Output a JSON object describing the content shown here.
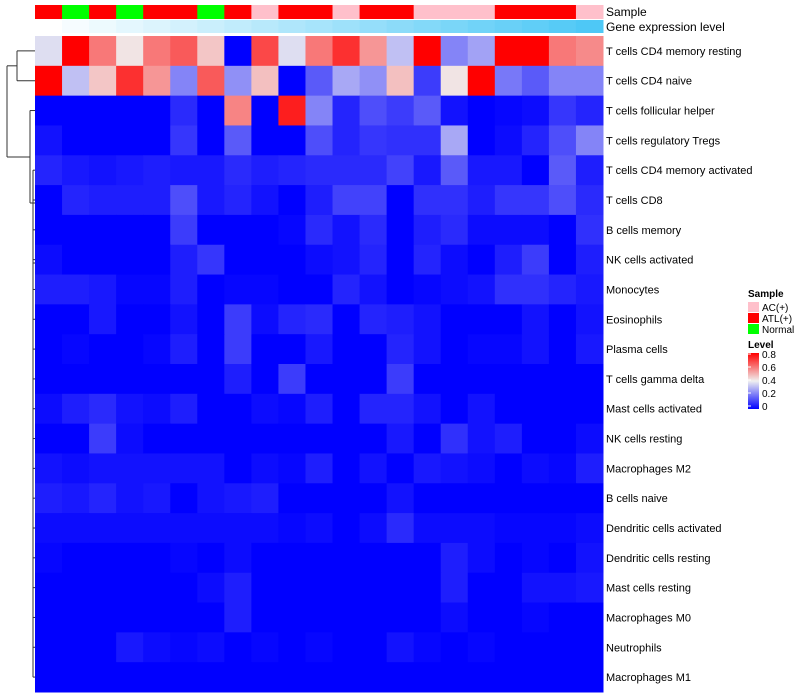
{
  "chart_data": {
    "type": "heatmap",
    "annotation_labels": {
      "sample": "Sample",
      "gene": "Gene expression level"
    },
    "rows": [
      "T cells CD4 memory resting",
      "T cells CD4 naive",
      "T cells follicular helper",
      "T cells regulatory  Tregs",
      "T cells CD4 memory activated",
      "T cells CD8",
      "B cells memory",
      "NK cells activated",
      "Monocytes",
      "Eosinophils",
      "Plasma cells",
      "T cells gamma delta",
      "Mast cells activated",
      "NK cells resting",
      "Macrophages M2",
      "B cells naive",
      "Dendritic cells activated",
      "Dendritic cells resting",
      "Mast cells resting",
      "Macrophages M0",
      "Neutrophils",
      "Macrophages M1"
    ],
    "sample_groups": [
      "ATL(+)",
      "Normal",
      "ATL(+)",
      "Normal",
      "ATL(+)",
      "ATL(+)",
      "Normal",
      "ATL(+)",
      "AC(+)",
      "ATL(+)",
      "ATL(+)",
      "AC(+)",
      "ATL(+)",
      "ATL(+)",
      "AC(+)",
      "AC(+)",
      "AC(+)",
      "ATL(+)",
      "ATL(+)",
      "ATL(+)",
      "AC(+)"
    ],
    "gene_expression_level": [
      0.0,
      0.05,
      0.1,
      0.15,
      0.2,
      0.25,
      0.3,
      0.35,
      0.4,
      0.45,
      0.5,
      0.55,
      0.6,
      0.65,
      0.7,
      0.75,
      0.8,
      0.85,
      0.9,
      0.95,
      1.0
    ],
    "values": [
      [
        0.37,
        0.8,
        0.6,
        0.42,
        0.6,
        0.65,
        0.47,
        0,
        0.68,
        0.37,
        0.6,
        0.72,
        0.55,
        0.32,
        0.8,
        0.22,
        0.27,
        0.8,
        0.8,
        0.6,
        0.57
      ],
      [
        0.8,
        0.32,
        0.47,
        0.72,
        0.55,
        0.22,
        0.65,
        0.24,
        0.48,
        0,
        0.15,
        0.28,
        0.24,
        0.48,
        0.1,
        0.42,
        0.8,
        0.2,
        0.15,
        0.22,
        0.22
      ],
      [
        0,
        0,
        0,
        0,
        0,
        0.07,
        0,
        0.58,
        0,
        0.75,
        0.22,
        0.06,
        0.13,
        0.1,
        0.15,
        0.03,
        0,
        0.01,
        0.02,
        0.09,
        0.06
      ],
      [
        0.03,
        0,
        0,
        0,
        0,
        0.09,
        0,
        0.15,
        0,
        0,
        0.13,
        0.06,
        0.09,
        0.08,
        0.08,
        0.28,
        0,
        0.02,
        0.06,
        0.13,
        0.22
      ],
      [
        0.06,
        0.04,
        0.03,
        0.04,
        0.05,
        0.04,
        0.04,
        0.07,
        0.05,
        0.06,
        0.07,
        0.07,
        0.07,
        0.11,
        0.04,
        0.15,
        0.04,
        0.04,
        0,
        0.15,
        0.05
      ],
      [
        0,
        0.06,
        0.05,
        0.05,
        0.05,
        0.13,
        0.04,
        0.06,
        0.03,
        0,
        0.05,
        0.11,
        0.11,
        0,
        0.08,
        0.08,
        0.05,
        0.09,
        0.09,
        0.13,
        0.07
      ],
      [
        0,
        0,
        0,
        0,
        0,
        0.1,
        0,
        0,
        0,
        0.01,
        0.07,
        0.03,
        0.07,
        0,
        0.05,
        0.07,
        0.02,
        0.02,
        0.02,
        0,
        0.08
      ],
      [
        0.02,
        0,
        0,
        0,
        0,
        0.05,
        0.09,
        0,
        0,
        0,
        0.02,
        0.03,
        0.06,
        0,
        0.06,
        0.02,
        0,
        0.05,
        0.1,
        0,
        0.05
      ],
      [
        0.05,
        0.05,
        0.04,
        0.01,
        0.01,
        0.05,
        0,
        0.01,
        0.01,
        0,
        0,
        0.06,
        0.03,
        0,
        0.01,
        0.02,
        0.03,
        0.08,
        0.08,
        0.06,
        0.04
      ],
      [
        0,
        0,
        0.04,
        0,
        0,
        0.03,
        0,
        0.1,
        0.02,
        0.06,
        0.07,
        0,
        0.06,
        0.05,
        0.03,
        0,
        0,
        0,
        0.03,
        0,
        0.03
      ],
      [
        0,
        0.01,
        0,
        0,
        0.01,
        0.05,
        0,
        0.1,
        0,
        0,
        0.04,
        0,
        0,
        0.06,
        0.03,
        0,
        0.01,
        0.01,
        0.03,
        0,
        0.04
      ],
      [
        0,
        0,
        0,
        0,
        0,
        0,
        0,
        0.05,
        0,
        0.1,
        0,
        0,
        0,
        0.1,
        0,
        0,
        0,
        0,
        0,
        0,
        0
      ],
      [
        0.02,
        0.05,
        0.07,
        0.03,
        0.02,
        0.05,
        0,
        0,
        0.02,
        0.01,
        0.05,
        0,
        0.06,
        0.06,
        0.03,
        0,
        0.03,
        0,
        0,
        0,
        0
      ],
      [
        0,
        0,
        0.1,
        0.02,
        0,
        0,
        0,
        0,
        0,
        0,
        0,
        0,
        0,
        0.04,
        0,
        0.08,
        0.03,
        0.05,
        0,
        0,
        0.02
      ],
      [
        0.03,
        0.02,
        0.03,
        0.03,
        0.03,
        0.03,
        0.03,
        0,
        0.02,
        0.01,
        0.05,
        0,
        0.03,
        0,
        0.04,
        0.03,
        0.02,
        0,
        0.02,
        0.01,
        0.05
      ],
      [
        0.05,
        0.04,
        0.06,
        0.03,
        0.04,
        0,
        0.03,
        0.04,
        0.05,
        0,
        0,
        0,
        0,
        0.03,
        0,
        0,
        0,
        0,
        0,
        0,
        0
      ],
      [
        0.02,
        0.02,
        0.02,
        0.02,
        0.02,
        0.02,
        0.02,
        0.02,
        0.02,
        0.01,
        0.02,
        0,
        0.02,
        0.07,
        0.02,
        0.02,
        0.02,
        0.01,
        0.01,
        0.01,
        0.02
      ],
      [
        0.01,
        0,
        0,
        0,
        0,
        0.01,
        0,
        0.02,
        0,
        0,
        0,
        0,
        0,
        0,
        0,
        0.05,
        0.02,
        0,
        0.01,
        0,
        0.03
      ],
      [
        0,
        0,
        0,
        0,
        0,
        0,
        0.02,
        0.05,
        0,
        0,
        0,
        0,
        0,
        0,
        0,
        0.05,
        0,
        0,
        0.03,
        0.03,
        0.04
      ],
      [
        0,
        0,
        0,
        0,
        0,
        0,
        0,
        0.05,
        0,
        0,
        0,
        0,
        0,
        0,
        0,
        0.02,
        0,
        0,
        0.01,
        0,
        0
      ],
      [
        0,
        0,
        0,
        0.04,
        0.02,
        0.01,
        0.02,
        0,
        0.01,
        0,
        0.01,
        0,
        0,
        0.03,
        0.01,
        0,
        0.01,
        0,
        0,
        0,
        0
      ],
      [
        0,
        0,
        0,
        0,
        0,
        0,
        0,
        0,
        0,
        0,
        0,
        0,
        0,
        0,
        0,
        0,
        0,
        0,
        0,
        0,
        0
      ]
    ],
    "legend": {
      "sample_title": "Sample",
      "sample_items": [
        {
          "label": "AC(+)",
          "color": "#ffc0cb"
        },
        {
          "label": "ATL(+)",
          "color": "#ff0000"
        },
        {
          "label": "Normal",
          "color": "#00ff00"
        }
      ],
      "level_title": "Level",
      "level_ticks": [
        "0.8",
        "0.6",
        "0.4",
        "0.2",
        "0"
      ],
      "level_range": [
        0,
        0.8
      ],
      "placement": "right"
    },
    "colors": {
      "low": "#0000ff",
      "mid": "#f0f0f0",
      "high": "#ff0000",
      "gene_low": "#ffffff",
      "gene_high": "#4ec8f6"
    }
  }
}
